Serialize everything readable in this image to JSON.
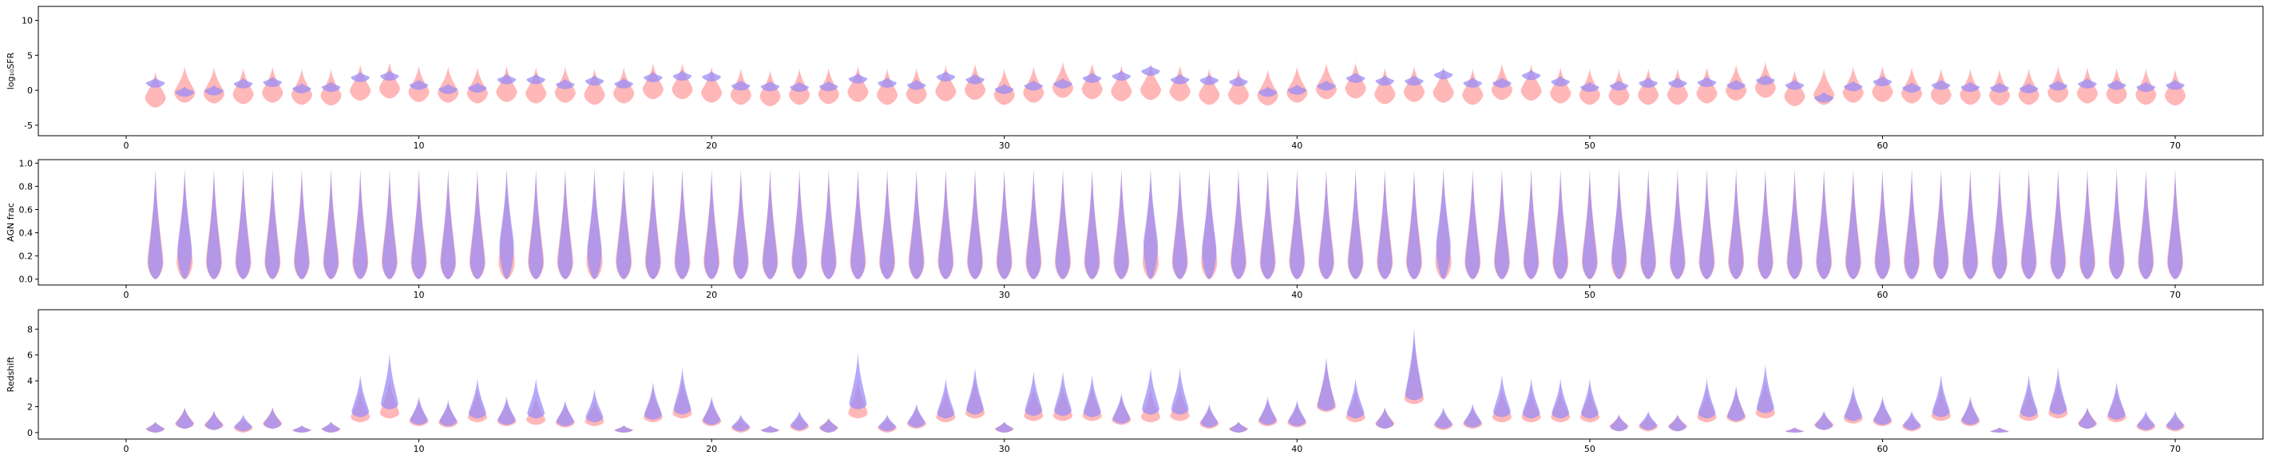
{
  "colors": {
    "series_a": "#ff9999",
    "series_b": "#9b8cf5",
    "overlap": "#9b59b6",
    "frame": "#000000"
  },
  "chart_data": [
    {
      "type": "violin",
      "ylabel": "log₁₀SFR",
      "ylim": [
        -6.5,
        12
      ],
      "yticks": [
        -5,
        0,
        5,
        10
      ],
      "xlim": [
        -3,
        73
      ],
      "xticks": [
        0,
        10,
        20,
        30,
        40,
        50,
        60,
        70
      ],
      "series": [
        {
          "role": "a",
          "centers": [
            -1,
            -0.3,
            -0.4,
            -0.5,
            -0.3,
            -0.6,
            -0.7,
            0.0,
            0.3,
            -0.2,
            -0.3,
            -0.4,
            -0.2,
            -0.4,
            -0.3,
            -0.6,
            -0.4,
            0.2,
            0.2,
            -0.3,
            -0.6,
            -0.8,
            -0.6,
            -0.5,
            -0.2,
            -0.6,
            -0.5,
            -0.1,
            0.1,
            -0.6,
            -0.3,
            0.4,
            0.2,
            -0.1,
            0.1,
            -0.1,
            -0.6,
            -0.6,
            -0.7,
            -0.3,
            0.2,
            0.3,
            -0.5,
            -0.2,
            -0.3,
            -0.6,
            0.1,
            0.0,
            -0.4,
            -0.6,
            -0.7,
            -0.6,
            -0.6,
            -0.4,
            0.0,
            0.4,
            -0.8,
            -0.6,
            -0.3,
            -0.2,
            -0.4,
            -0.6,
            -0.6,
            -0.7,
            -0.6,
            -0.3,
            -0.4,
            -0.5,
            -0.6,
            -0.7
          ]
        },
        {
          "role": "b",
          "centers": [
            1.1,
            -0.2,
            0.0,
            1.0,
            1.2,
            0.3,
            0.5,
            1.9,
            2.1,
            0.8,
            0.2,
            0.4,
            1.6,
            1.6,
            0.9,
            1.4,
            1.0,
            1.9,
            2.1,
            2.0,
            0.7,
            0.6,
            0.5,
            0.6,
            1.7,
            1.1,
            0.8,
            2.0,
            1.6,
            0.2,
            0.7,
            1.0,
            1.8,
            2.1,
            2.8,
            1.6,
            1.5,
            1.3,
            -0.2,
            0.1,
            0.7,
            1.8,
            1.4,
            1.4,
            2.3,
            1.1,
            1.1,
            2.2,
            1.3,
            0.5,
            0.7,
            1.1,
            1.1,
            1.2,
            0.8,
            1.5,
            0.8,
            -1.0,
            0.6,
            1.3,
            0.4,
            0.8,
            0.5,
            0.4,
            0.3,
            0.7,
            1.0,
            0.8,
            0.5,
            0.8
          ]
        }
      ]
    },
    {
      "type": "violin",
      "ylabel": "AGN frac",
      "ylim": [
        -0.05,
        1.03
      ],
      "yticks": [
        0.0,
        0.2,
        0.4,
        0.6,
        0.8,
        1.0
      ],
      "xlim": [
        -3,
        73
      ],
      "xticks": [
        0,
        10,
        20,
        30,
        40,
        50,
        60,
        70
      ],
      "series": [
        {
          "role": "a",
          "centers": [
            0.15,
            0.15,
            0.15,
            0.15,
            0.15,
            0.15,
            0.15,
            0.15,
            0.15,
            0.15,
            0.15,
            0.15,
            0.15,
            0.15,
            0.15,
            0.15,
            0.15,
            0.15,
            0.15,
            0.15,
            0.15,
            0.15,
            0.15,
            0.15,
            0.15,
            0.15,
            0.15,
            0.15,
            0.15,
            0.15,
            0.15,
            0.15,
            0.15,
            0.15,
            0.15,
            0.15,
            0.15,
            0.15,
            0.15,
            0.15,
            0.15,
            0.15,
            0.15,
            0.15,
            0.15,
            0.15,
            0.15,
            0.15,
            0.15,
            0.15,
            0.15,
            0.15,
            0.15,
            0.15,
            0.15,
            0.15,
            0.15,
            0.15,
            0.15,
            0.15,
            0.15,
            0.15,
            0.15,
            0.15,
            0.15,
            0.15,
            0.15,
            0.15,
            0.15,
            0.15
          ]
        },
        {
          "role": "b",
          "centers": [
            0.15,
            0.25,
            0.15,
            0.15,
            0.15,
            0.15,
            0.15,
            0.15,
            0.15,
            0.15,
            0.15,
            0.15,
            0.3,
            0.15,
            0.15,
            0.25,
            0.15,
            0.15,
            0.15,
            0.15,
            0.15,
            0.15,
            0.15,
            0.15,
            0.15,
            0.15,
            0.15,
            0.15,
            0.15,
            0.15,
            0.15,
            0.15,
            0.15,
            0.15,
            0.3,
            0.15,
            0.25,
            0.15,
            0.15,
            0.15,
            0.15,
            0.15,
            0.15,
            0.15,
            0.3,
            0.15,
            0.15,
            0.15,
            0.15,
            0.15,
            0.2,
            0.15,
            0.15,
            0.15,
            0.15,
            0.15,
            0.15,
            0.15,
            0.15,
            0.15,
            0.15,
            0.15,
            0.15,
            0.15,
            0.15,
            0.15,
            0.15,
            0.15,
            0.15,
            0.15
          ]
        }
      ]
    },
    {
      "type": "violin",
      "ylabel": "Redshift",
      "ylim": [
        -0.5,
        9.5
      ],
      "yticks": [
        0,
        2,
        4,
        6,
        8
      ],
      "xlim": [
        -3,
        73
      ],
      "xticks": [
        0,
        10,
        20,
        30,
        40,
        50,
        60,
        70
      ],
      "series": [
        {
          "role": "a",
          "centers": [
            0.3,
            0.7,
            0.6,
            0.4,
            0.7,
            0.2,
            0.3,
            1.2,
            1.5,
            0.9,
            0.8,
            1.2,
            0.9,
            1.0,
            0.8,
            0.9,
            0.2,
            1.2,
            1.5,
            0.9,
            0.4,
            0.2,
            0.5,
            0.4,
            1.5,
            0.4,
            0.7,
            1.2,
            1.5,
            0.3,
            1.3,
            1.3,
            1.3,
            1.0,
            1.2,
            1.3,
            0.7,
            0.3,
            0.9,
            0.8,
            2.0,
            1.2,
            0.7,
            2.6,
            0.6,
            0.7,
            1.2,
            1.2,
            1.2,
            1.2,
            0.5,
            0.5,
            0.5,
            1.2,
            1.2,
            1.5,
            0.1,
            0.6,
            1.1,
            0.9,
            0.5,
            1.3,
            0.9,
            0.1,
            1.3,
            1.5,
            0.7,
            1.2,
            0.5,
            0.5
          ]
        },
        {
          "role": "b",
          "centers": [
            0.3,
            0.7,
            0.6,
            0.5,
            0.7,
            0.2,
            0.3,
            1.6,
            2.2,
            1.0,
            0.9,
            1.5,
            1.0,
            1.5,
            0.9,
            1.2,
            0.2,
            1.4,
            1.8,
            1.0,
            0.5,
            0.2,
            0.6,
            0.4,
            2.2,
            0.5,
            0.8,
            1.5,
            1.8,
            0.3,
            1.7,
            1.7,
            1.6,
            1.1,
            1.8,
            1.8,
            0.8,
            0.3,
            1.0,
            0.9,
            2.1,
            1.5,
            0.7,
            2.9,
            0.7,
            0.8,
            1.6,
            1.5,
            1.5,
            1.5,
            0.5,
            0.6,
            0.5,
            1.5,
            1.3,
            1.9,
            0.1,
            0.6,
            1.3,
            1.0,
            0.6,
            1.6,
            1.0,
            0.1,
            1.6,
            1.8,
            0.7,
            1.4,
            0.6,
            0.6
          ]
        }
      ]
    }
  ]
}
